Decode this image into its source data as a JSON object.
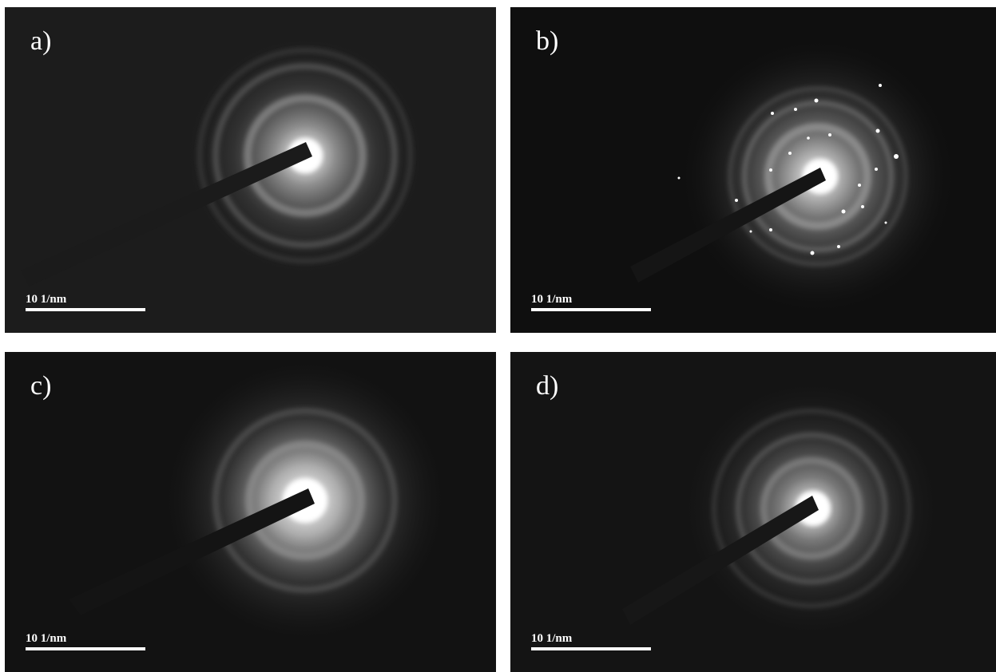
{
  "panels": [
    {
      "id": "a",
      "label": "a)",
      "scale_bar": "10 1/nm"
    },
    {
      "id": "b",
      "label": "b)",
      "scale_bar": "10 1/nm"
    },
    {
      "id": "c",
      "label": "c)",
      "scale_bar": "10 1/nm"
    },
    {
      "id": "d",
      "label": "d)",
      "scale_bar": "10 1/nm"
    }
  ],
  "colors": {
    "background": "#ffffff",
    "panel_bg": "#1a1a1a",
    "foreground": "#ffffff"
  }
}
